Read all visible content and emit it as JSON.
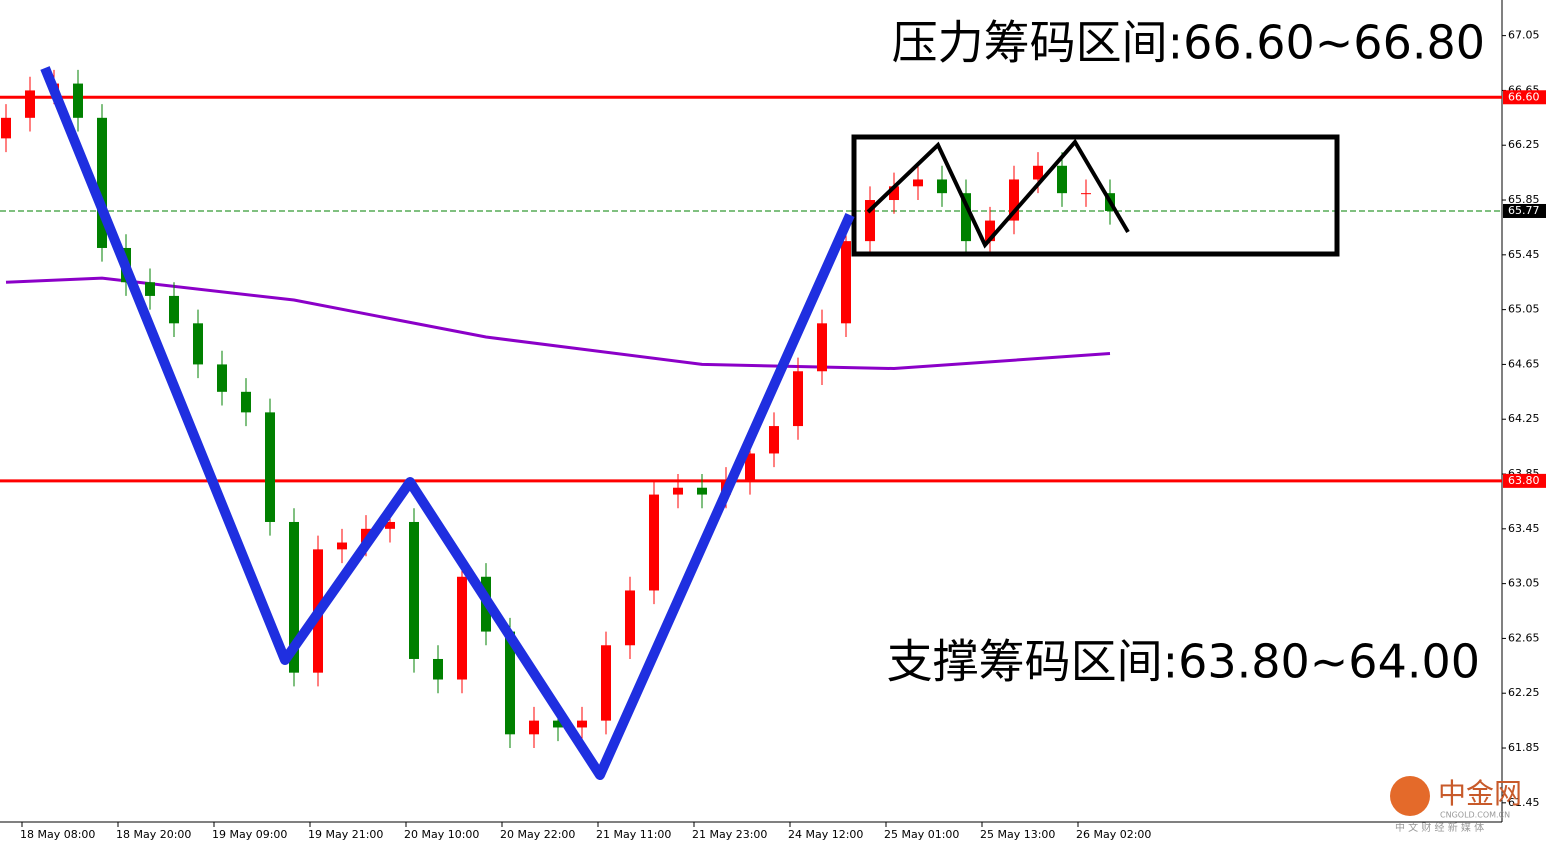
{
  "chart_data": {
    "type": "candlestick",
    "annotations": [
      "压力筹码区间:66.60~66.80",
      "支撑筹码区间:63.80~64.00"
    ],
    "watermark": {
      "brand": "中金网",
      "site": "CNGOLD.COM.CN",
      "slogan": "中 文 财 经 新 媒 体"
    },
    "xlim": [
      -0.75,
      187
    ],
    "ylim": [
      61.31,
      67.31
    ],
    "xticks": [
      {
        "value": 2,
        "label": "18 May 08:00"
      },
      {
        "value": 14,
        "label": "18 May 20:00"
      },
      {
        "value": 26,
        "label": "19 May 09:00"
      },
      {
        "value": 38,
        "label": "19 May 21:00"
      },
      {
        "value": 50,
        "label": "20 May 10:00"
      },
      {
        "value": 62,
        "label": "20 May 22:00"
      },
      {
        "value": 74,
        "label": "21 May 11:00"
      },
      {
        "value": 86,
        "label": "21 May 23:00"
      },
      {
        "value": 98,
        "label": "24 May 12:00"
      },
      {
        "value": 110,
        "label": "25 May 01:00"
      },
      {
        "value": 122,
        "label": "25 May 13:00"
      },
      {
        "value": 134,
        "label": "26 May 02:00"
      }
    ],
    "yticks": [
      67.05,
      66.65,
      66.25,
      65.85,
      65.45,
      65.05,
      64.65,
      64.25,
      63.85,
      63.45,
      63.05,
      62.65,
      62.25,
      61.85,
      61.45
    ],
    "up_color": "#ff0000",
    "down_color": "#008000",
    "x": [
      0,
      3,
      6,
      9,
      12,
      15,
      18,
      21,
      24,
      27,
      30,
      33,
      36,
      39,
      42,
      45,
      48,
      51,
      54,
      57,
      60,
      63,
      66,
      69,
      72,
      75,
      78,
      81,
      84,
      87,
      90,
      93,
      96,
      99,
      102,
      105,
      108,
      111,
      114,
      117,
      120,
      123,
      126,
      129,
      132,
      135,
      138
    ],
    "open": [
      66.3,
      66.45,
      66.65,
      66.7,
      66.45,
      65.5,
      65.25,
      65.15,
      64.95,
      64.65,
      64.45,
      64.3,
      63.5,
      62.4,
      63.3,
      63.35,
      63.45,
      63.5,
      62.5,
      62.35,
      63.1,
      62.7,
      61.95,
      62.05,
      62.0,
      62.05,
      62.6,
      63.0,
      63.7,
      63.75,
      63.7,
      63.8,
      64.0,
      64.2,
      64.6,
      64.95,
      65.55,
      65.85,
      65.95,
      66.0,
      65.9,
      65.55,
      65.7,
      66.0,
      66.1,
      65.9,
      65.9
    ],
    "high": [
      66.55,
      66.75,
      66.8,
      66.8,
      66.55,
      65.6,
      65.35,
      65.25,
      65.05,
      64.75,
      64.55,
      64.4,
      63.6,
      63.4,
      63.45,
      63.55,
      63.6,
      63.6,
      62.6,
      63.2,
      63.2,
      62.8,
      62.15,
      62.15,
      62.15,
      62.7,
      63.1,
      63.8,
      63.85,
      63.85,
      63.9,
      64.1,
      64.3,
      64.7,
      65.05,
      65.65,
      65.95,
      66.05,
      66.1,
      66.1,
      66.0,
      65.8,
      66.1,
      66.2,
      66.2,
      66.0,
      66.0
    ],
    "low": [
      66.2,
      66.35,
      66.55,
      66.35,
      65.4,
      65.15,
      65.05,
      64.85,
      64.55,
      64.35,
      64.2,
      63.4,
      62.3,
      62.3,
      63.2,
      63.25,
      63.35,
      62.4,
      62.25,
      62.25,
      62.6,
      61.85,
      61.85,
      61.9,
      61.9,
      61.95,
      62.5,
      62.9,
      63.6,
      63.6,
      63.6,
      63.7,
      63.9,
      64.1,
      64.5,
      64.85,
      65.45,
      65.75,
      65.85,
      65.8,
      65.45,
      65.45,
      65.6,
      65.9,
      65.8,
      65.8,
      65.67
    ],
    "close": [
      66.45,
      66.65,
      66.7,
      66.45,
      65.5,
      65.25,
      65.15,
      64.95,
      64.65,
      64.45,
      64.3,
      63.5,
      62.4,
      63.3,
      63.35,
      63.45,
      63.5,
      62.5,
      62.35,
      63.1,
      62.7,
      61.95,
      62.05,
      62.0,
      62.05,
      62.6,
      63.0,
      63.7,
      63.75,
      63.7,
      63.8,
      64.0,
      64.2,
      64.6,
      64.95,
      65.55,
      65.85,
      65.95,
      66.0,
      65.9,
      65.55,
      65.7,
      66.0,
      66.1,
      65.9,
      65.9,
      65.77
    ],
    "lines": [
      {
        "color": "#8b00c8",
        "x": [
          0,
          12,
          36,
          60,
          87,
          111,
          138
        ],
        "values": [
          65.25,
          65.28,
          65.12,
          64.85,
          64.65,
          64.62,
          64.73
        ]
      }
    ],
    "hlines": [
      {
        "value": 66.6,
        "label": "66.60",
        "color": "#ff0000"
      },
      {
        "value": 63.8,
        "label": "63.80",
        "color": "#ff0000"
      },
      {
        "value": 65.77,
        "label": "65.77",
        "color": "#008000"
      }
    ]
  }
}
